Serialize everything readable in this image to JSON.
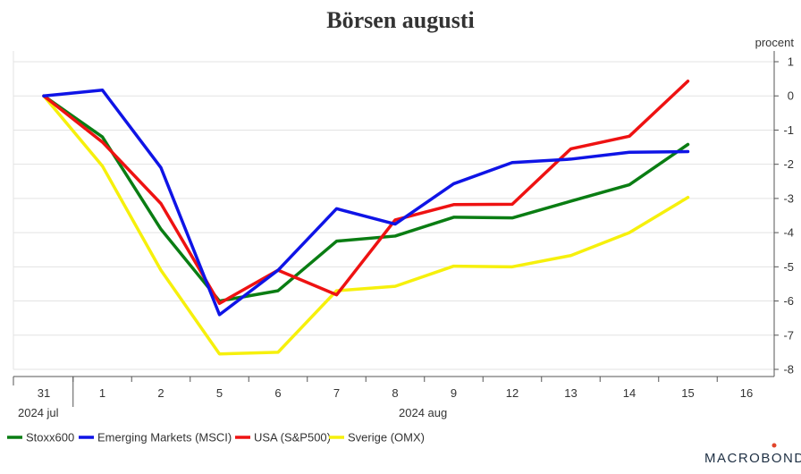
{
  "chart_data": {
    "type": "line",
    "title": "Börsen augusti",
    "yunit": "procent",
    "ylim": [
      -8,
      1
    ],
    "yticks": [
      1,
      0,
      -1,
      -2,
      -3,
      -4,
      -5,
      -6,
      -7,
      -8
    ],
    "categories": [
      "31",
      "1",
      "2",
      "5",
      "6",
      "7",
      "8",
      "9",
      "12",
      "13",
      "14",
      "15",
      "16"
    ],
    "period_labels": [
      "2024 jul",
      "2024 aug"
    ],
    "grid": true,
    "legend_position": "bottom-left",
    "series": [
      {
        "name": "Stoxx600",
        "color": "#0a7d13",
        "values": [
          0,
          -1.2,
          -3.9,
          -6.0,
          -5.7,
          -4.25,
          -4.1,
          -3.55,
          -3.57,
          -3.08,
          -2.6,
          -1.42,
          null
        ]
      },
      {
        "name": "Emerging Markets (MSCI)",
        "color": "#0f14e6",
        "values": [
          0,
          0.17,
          -2.1,
          -6.4,
          -5.1,
          -3.3,
          -3.75,
          -2.57,
          -1.95,
          -1.85,
          -1.65,
          -1.63,
          null
        ]
      },
      {
        "name": "USA (S&P500)",
        "color": "#ee1212",
        "values": [
          0,
          -1.35,
          -3.15,
          -6.07,
          -5.1,
          -5.82,
          -3.63,
          -3.18,
          -3.17,
          -1.55,
          -1.18,
          0.43,
          null
        ]
      },
      {
        "name": "Sverige (OMX)",
        "color": "#f6f00c",
        "values": [
          0,
          -2.05,
          -5.1,
          -7.55,
          -7.5,
          -5.7,
          -5.57,
          -4.98,
          -5.0,
          -4.67,
          -4.0,
          -2.97,
          null
        ]
      }
    ]
  },
  "brand": "MACROBOND"
}
